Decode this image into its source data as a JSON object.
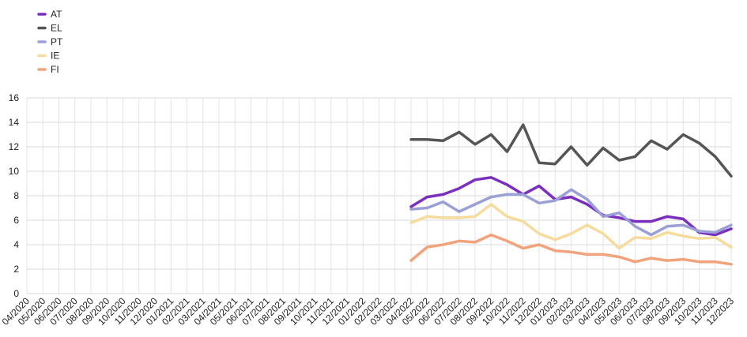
{
  "chart_data": {
    "type": "line",
    "title": "",
    "xlabel": "",
    "ylabel": "",
    "ylim": [
      0,
      16
    ],
    "yticks": [
      0,
      2,
      4,
      6,
      8,
      10,
      12,
      14,
      16
    ],
    "grid": true,
    "legend_position": "top-left",
    "categories": [
      "04/2020",
      "05/2020",
      "06/2020",
      "07/2020",
      "08/2020",
      "09/2020",
      "10/2020",
      "11/2020",
      "12/2020",
      "01/2021",
      "02/2021",
      "03/2021",
      "04/2021",
      "05/2021",
      "06/2021",
      "07/2021",
      "08/2021",
      "09/2021",
      "10/2021",
      "11/2021",
      "12/2021",
      "01/2022",
      "02/2022",
      "03/2022",
      "04/2022",
      "05/2022",
      "06/2022",
      "07/2022",
      "08/2022",
      "09/2022",
      "10/2022",
      "11/2022",
      "12/2022",
      "01/2023",
      "02/2023",
      "03/2023",
      "04/2023",
      "05/2023",
      "06/2023",
      "07/2023",
      "08/2023",
      "09/2023",
      "10/2023",
      "11/2023",
      "12/2023"
    ],
    "series": [
      {
        "name": "AT",
        "color": "#7b2fbf",
        "values": [
          null,
          null,
          null,
          null,
          null,
          null,
          null,
          null,
          null,
          null,
          null,
          null,
          null,
          null,
          null,
          null,
          null,
          null,
          null,
          null,
          null,
          null,
          null,
          null,
          7.1,
          7.9,
          8.1,
          8.6,
          9.3,
          9.5,
          8.9,
          8.1,
          8.8,
          7.7,
          7.9,
          7.3,
          6.4,
          6.2,
          5.9,
          5.9,
          6.3,
          6.1,
          5.0,
          4.8,
          5.3
        ]
      },
      {
        "name": "EL",
        "color": "#555555",
        "values": [
          null,
          null,
          null,
          null,
          null,
          null,
          null,
          null,
          null,
          null,
          null,
          null,
          null,
          null,
          null,
          null,
          null,
          null,
          null,
          null,
          null,
          null,
          null,
          null,
          12.6,
          12.6,
          12.5,
          13.2,
          12.2,
          13.0,
          11.6,
          13.8,
          10.7,
          10.6,
          12.0,
          10.5,
          11.9,
          10.9,
          11.2,
          12.5,
          11.8,
          13.0,
          12.3,
          11.2,
          9.6
        ]
      },
      {
        "name": "PT",
        "color": "#9aa0d6",
        "values": [
          null,
          null,
          null,
          null,
          null,
          null,
          null,
          null,
          null,
          null,
          null,
          null,
          null,
          null,
          null,
          null,
          null,
          null,
          null,
          null,
          null,
          null,
          null,
          null,
          6.9,
          7.0,
          7.5,
          6.7,
          7.3,
          7.9,
          8.1,
          8.1,
          7.4,
          7.6,
          8.5,
          7.7,
          6.3,
          6.6,
          5.5,
          4.8,
          5.5,
          5.6,
          5.1,
          5.0,
          5.6
        ]
      },
      {
        "name": "IE",
        "color": "#f5dc9c",
        "values": [
          null,
          null,
          null,
          null,
          null,
          null,
          null,
          null,
          null,
          null,
          null,
          null,
          null,
          null,
          null,
          null,
          null,
          null,
          null,
          null,
          null,
          null,
          null,
          null,
          5.8,
          6.3,
          6.2,
          6.2,
          6.3,
          7.3,
          6.3,
          5.9,
          4.9,
          4.4,
          4.9,
          5.6,
          4.9,
          3.7,
          4.6,
          4.5,
          5.0,
          4.7,
          4.5,
          4.6,
          3.8
        ]
      },
      {
        "name": "FI",
        "color": "#f2a37b",
        "values": [
          null,
          null,
          null,
          null,
          null,
          null,
          null,
          null,
          null,
          null,
          null,
          null,
          null,
          null,
          null,
          null,
          null,
          null,
          null,
          null,
          null,
          null,
          null,
          null,
          2.7,
          3.8,
          4.0,
          4.3,
          4.2,
          4.8,
          4.3,
          3.7,
          4.0,
          3.5,
          3.4,
          3.2,
          3.2,
          3.0,
          2.6,
          2.9,
          2.7,
          2.8,
          2.6,
          2.6,
          2.4
        ]
      }
    ]
  }
}
